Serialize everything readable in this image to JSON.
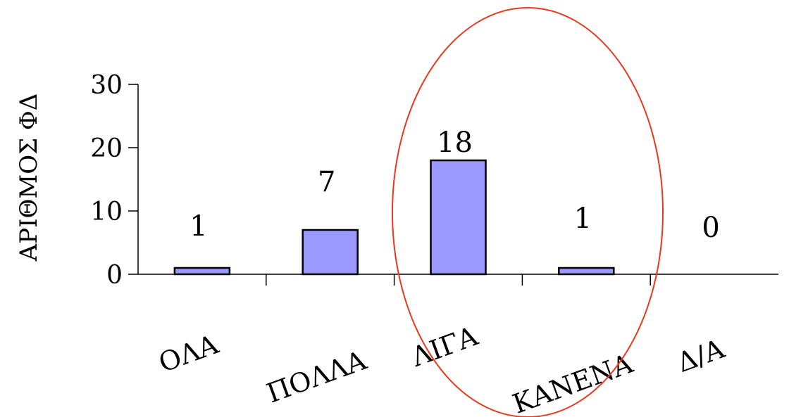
{
  "chart_data": {
    "type": "bar",
    "categories": [
      "ΟΛΑ",
      "ΠΟΛΛΑ",
      "ΛΙΓΑ",
      "ΚΑΝΕΝΑ",
      "Δ/Α"
    ],
    "values": [
      1,
      7,
      18,
      1,
      0
    ],
    "data_labels": [
      "1",
      "7",
      "18",
      "1",
      "0"
    ],
    "ylabel": "ΑΡΙΘΜΟΣ ΦΔ",
    "ylim": [
      0,
      30
    ],
    "yticks": [
      0,
      10,
      20,
      30
    ],
    "ytick_labels": [
      "0",
      "10",
      "20",
      "30"
    ],
    "grid": false,
    "legend": "none",
    "colors": {
      "bar_fill": "#9999ff",
      "bar_stroke": "#000000",
      "axis": "#000000",
      "highlight_ellipse": "#e8391e"
    },
    "annotation": {
      "shape": "ellipse",
      "encloses_categories": [
        "ΛΙΓΑ",
        "ΚΑΝΕΝΑ"
      ]
    }
  }
}
